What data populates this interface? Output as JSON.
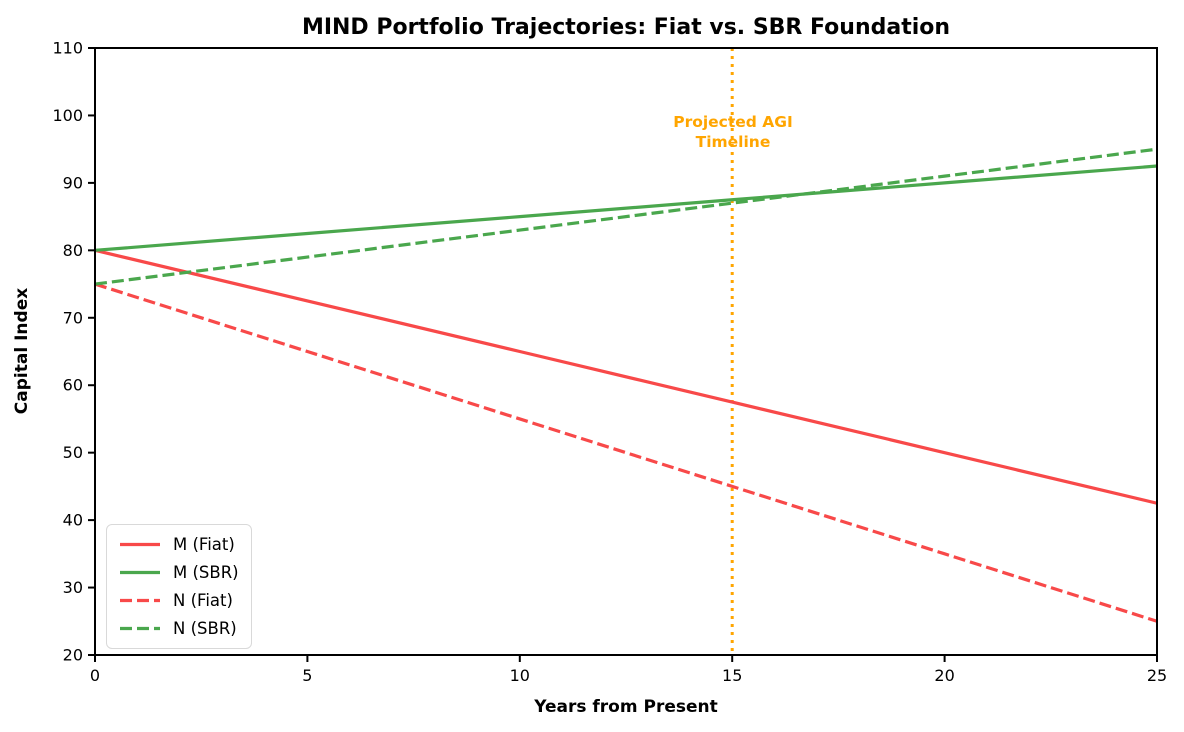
{
  "chart_data": {
    "type": "line",
    "title": "MIND Portfolio Trajectories: Fiat vs. SBR Foundation",
    "xlabel": "Years from Present",
    "ylabel": "Capital Index",
    "xlim": [
      0,
      25
    ],
    "ylim": [
      20,
      110
    ],
    "xticks": [
      0,
      5,
      10,
      15,
      20,
      25
    ],
    "yticks": [
      20,
      30,
      40,
      50,
      60,
      70,
      80,
      90,
      100,
      110
    ],
    "grid": false,
    "legend_position": "lower-left",
    "x": [
      0,
      5,
      10,
      15,
      20,
      25
    ],
    "series": [
      {
        "name": "M (Fiat)",
        "color": "#f84949",
        "style": "solid",
        "values": [
          80,
          72.5,
          65,
          57.5,
          50,
          42.5
        ]
      },
      {
        "name": "M (SBR)",
        "color": "#4aa74d",
        "style": "solid",
        "values": [
          80,
          82.5,
          85,
          87.5,
          90,
          92.5
        ]
      },
      {
        "name": "N (Fiat)",
        "color": "#f84949",
        "style": "dashed",
        "values": [
          75,
          65,
          55,
          45,
          35,
          25
        ]
      },
      {
        "name": "N (SBR)",
        "color": "#4aa74d",
        "style": "dashed",
        "values": [
          75,
          79,
          83,
          87,
          91,
          95
        ]
      }
    ],
    "vline": {
      "x": 15,
      "color": "#FFA500",
      "style": "dotted"
    },
    "annotation": {
      "lines": [
        "Projected AGI",
        "Timeline"
      ],
      "color": "#FFA500",
      "x": 15
    },
    "colors": {
      "fiat": "#f84949",
      "sbr": "#4aa74d",
      "agi_marker": "#FFA500",
      "axes": "#000000"
    }
  }
}
